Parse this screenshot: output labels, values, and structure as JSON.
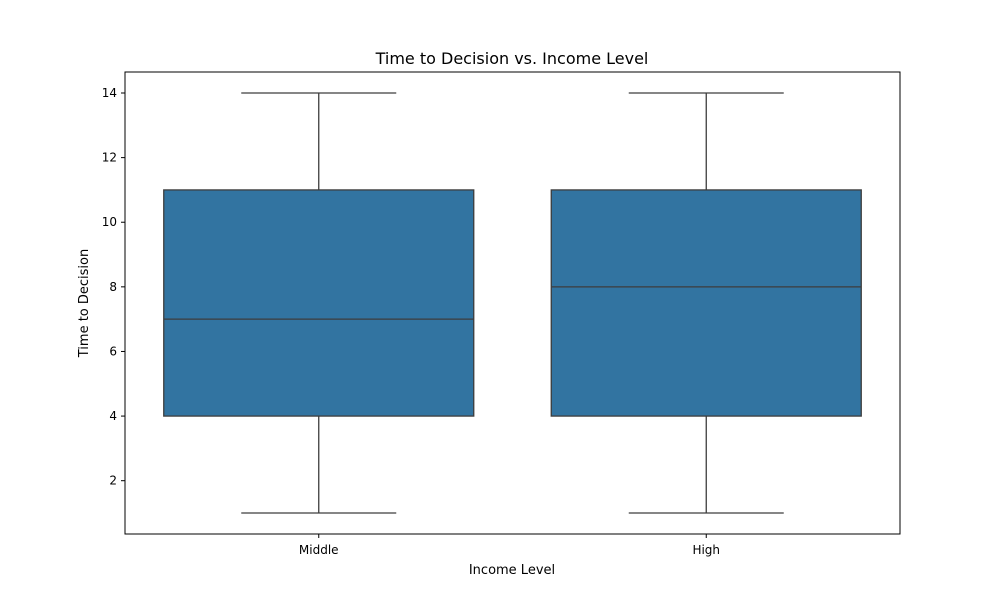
{
  "chart_data": {
    "type": "box",
    "title": "Time to Decision vs. Income Level",
    "xlabel": "Income Level",
    "ylabel": "Time to Decision",
    "categories": [
      "Middle",
      "High"
    ],
    "boxes": [
      {
        "category": "Middle",
        "whisker_low": 1,
        "q1": 4,
        "median": 7,
        "q3": 11,
        "whisker_high": 14
      },
      {
        "category": "High",
        "whisker_low": 1,
        "q1": 4,
        "median": 8,
        "q3": 11,
        "whisker_high": 14
      }
    ],
    "yticks": [
      2,
      4,
      6,
      8,
      10,
      12,
      14
    ],
    "ylim": [
      0.35,
      14.65
    ],
    "grid": false,
    "legend": "none",
    "colors": {
      "box_fill": "#3274a1",
      "line": "#3d3d3d",
      "axis": "#000000"
    }
  }
}
